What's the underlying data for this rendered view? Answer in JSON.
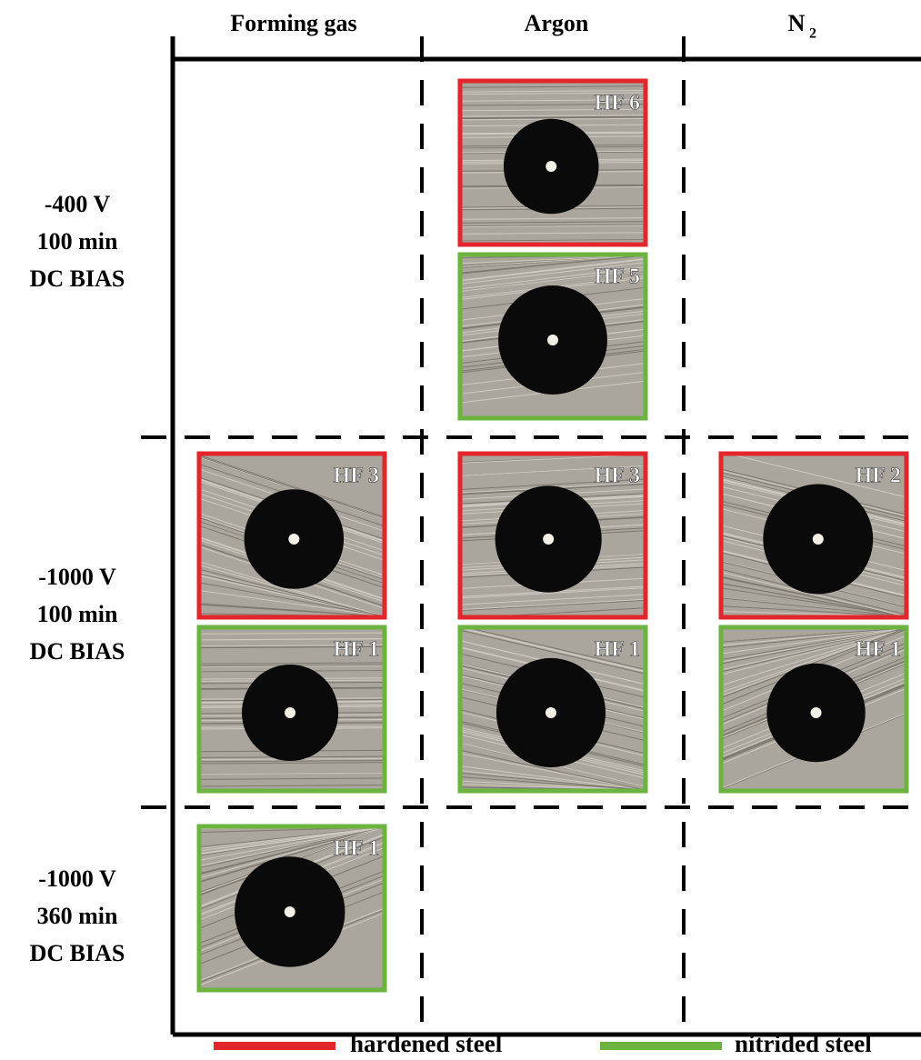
{
  "columns": [
    "Forming gas",
    "Argon",
    {
      "text": "N",
      "subscript": "2"
    }
  ],
  "rows": [
    {
      "label": [
        "-400 V",
        "100 min",
        "DC BIAS"
      ],
      "cells": [
        {},
        {
          "hardened": "HF 6",
          "nitrided": "HF 5"
        },
        {}
      ]
    },
    {
      "label": [
        "-1000 V",
        "100 min",
        "DC BIAS"
      ],
      "cells": [
        {
          "hardened": "HF 3",
          "nitrided": "HF 1"
        },
        {
          "hardened": "HF 3",
          "nitrided": "HF 1"
        },
        {
          "hardened": "HF 2",
          "nitrided": "HF 1"
        }
      ]
    },
    {
      "label": [
        "-1000 V",
        "360 min",
        "DC BIAS"
      ],
      "cells": [
        {
          "nitrided": "HF 1"
        },
        {},
        {}
      ]
    }
  ],
  "legend": {
    "hardened": {
      "label": "hardened steel",
      "color": "#e3262b"
    },
    "nitrided": {
      "label": "nitrided steel",
      "color": "#6db33f"
    }
  }
}
